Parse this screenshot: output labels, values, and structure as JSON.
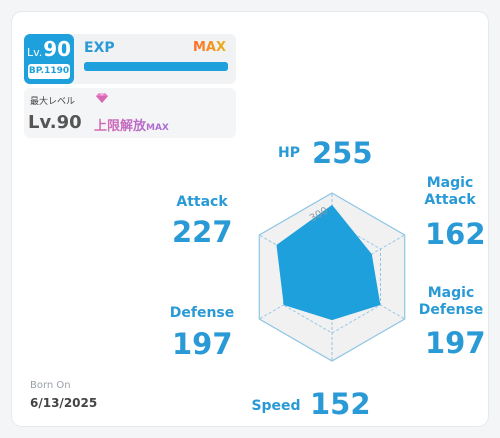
{
  "level_badge": {
    "prefix": "Lv.",
    "level": "90",
    "bp": "BP.1190"
  },
  "exp": {
    "label": "EXP",
    "status": "MAX",
    "progress": 1.0
  },
  "max_level": {
    "label": "最大レベル",
    "value": "Lv.90",
    "limit_text": "上限解放",
    "limit_suffix": "MAX",
    "icon": "gem-icon"
  },
  "radar": {
    "max_label": "300",
    "scale_max": 300,
    "stats": [
      {
        "key": "hp",
        "name": "HP",
        "value": 255
      },
      {
        "key": "magic_attack",
        "name": "Magic Attack",
        "value": 162
      },
      {
        "key": "magic_defense",
        "name": "Magic Defense",
        "value": 197
      },
      {
        "key": "speed",
        "name": "Speed",
        "value": 152
      },
      {
        "key": "defense",
        "name": "Defense",
        "value": 197
      },
      {
        "key": "attack",
        "name": "Attack",
        "value": 227
      }
    ],
    "colors": {
      "fill": "#1ea0dc",
      "grid": "#8ec5e4",
      "bg": "#f1f1f2"
    }
  },
  "labels": {
    "hp": {
      "name": "HP",
      "value": "255"
    },
    "magic_attack": {
      "name_line1": "Magic",
      "name_line2": "Attack",
      "value": "162"
    },
    "magic_defense": {
      "name_line1": "Magic",
      "name_line2": "Defense",
      "value": "197"
    },
    "speed": {
      "name": "Speed",
      "value": "152"
    },
    "defense": {
      "name": "Defense",
      "value": "197"
    },
    "attack": {
      "name": "Attack",
      "value": "227"
    }
  },
  "born": {
    "label": "Born On",
    "date": "6/13/2025"
  }
}
